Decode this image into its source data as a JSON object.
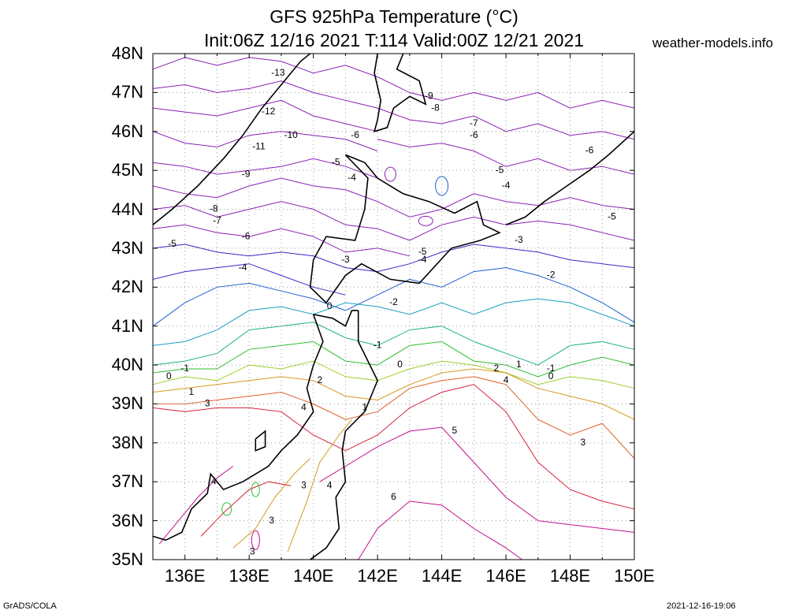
{
  "title": {
    "line1": "GFS 925hPa Temperature (°C)",
    "line2": "Init:06Z 12/16 2021 T:114 Valid:00Z 12/21 2021"
  },
  "source_site": "weather-models.info",
  "footer": {
    "left": "GrADS/COLA",
    "right": "2021-12-16-19:06"
  },
  "axes": {
    "lat_labels": [
      "48N",
      "47N",
      "46N",
      "45N",
      "44N",
      "43N",
      "42N",
      "41N",
      "40N",
      "39N",
      "38N",
      "37N",
      "36N",
      "35N"
    ],
    "lon_labels": [
      "136E",
      "138E",
      "140E",
      "142E",
      "144E",
      "146E",
      "148E",
      "150E"
    ],
    "lat_range": [
      35,
      48
    ],
    "lon_range": [
      135,
      150
    ],
    "grid": "dotted"
  },
  "contour_labels": [
    {
      "text": "-13",
      "lon": 138.9,
      "lat": 47.5
    },
    {
      "text": "-12",
      "lon": 138.6,
      "lat": 46.5
    },
    {
      "text": "-11",
      "lon": 138.3,
      "lat": 45.6
    },
    {
      "text": "-10",
      "lon": 139.3,
      "lat": 45.9
    },
    {
      "text": "-9",
      "lon": 137.9,
      "lat": 44.9
    },
    {
      "text": "-8",
      "lon": 136.9,
      "lat": 44.0
    },
    {
      "text": "-7",
      "lon": 137.0,
      "lat": 43.7
    },
    {
      "text": "-6",
      "lon": 137.9,
      "lat": 43.3
    },
    {
      "text": "-5",
      "lon": 135.6,
      "lat": 43.1
    },
    {
      "text": "-4",
      "lon": 137.8,
      "lat": 42.5
    },
    {
      "text": "-3",
      "lon": 141.0,
      "lat": 42.7
    },
    {
      "text": "-2",
      "lon": 142.5,
      "lat": 41.6
    },
    {
      "text": "-2",
      "lon": 147.4,
      "lat": 42.3
    },
    {
      "text": "-1",
      "lon": 136.0,
      "lat": 39.9
    },
    {
      "text": "-1",
      "lon": 142.0,
      "lat": 40.5
    },
    {
      "text": "-1",
      "lon": 147.4,
      "lat": 39.9
    },
    {
      "text": "0",
      "lon": 135.5,
      "lat": 39.7
    },
    {
      "text": "0",
      "lon": 140.5,
      "lat": 41.5
    },
    {
      "text": "0",
      "lon": 142.7,
      "lat": 40.0
    },
    {
      "text": "0",
      "lon": 147.4,
      "lat": 39.7
    },
    {
      "text": "1",
      "lon": 136.2,
      "lat": 39.3
    },
    {
      "text": "1",
      "lon": 141.6,
      "lat": 38.9
    },
    {
      "text": "1",
      "lon": 146.4,
      "lat": 40.0
    },
    {
      "text": "2",
      "lon": 140.2,
      "lat": 39.6
    },
    {
      "text": "2",
      "lon": 145.7,
      "lat": 39.9
    },
    {
      "text": "3",
      "lon": 136.7,
      "lat": 39.0
    },
    {
      "text": "3",
      "lon": 138.7,
      "lat": 36.0
    },
    {
      "text": "3",
      "lon": 138.1,
      "lat": 35.2
    },
    {
      "text": "3",
      "lon": 139.7,
      "lat": 36.9
    },
    {
      "text": "3",
      "lon": 148.4,
      "lat": 38.0
    },
    {
      "text": "4",
      "lon": 139.7,
      "lat": 38.9
    },
    {
      "text": "4",
      "lon": 140.5,
      "lat": 36.9
    },
    {
      "text": "4",
      "lon": 136.9,
      "lat": 37.0
    },
    {
      "text": "4",
      "lon": 146.0,
      "lat": 39.6
    },
    {
      "text": "5",
      "lon": 144.4,
      "lat": 38.3
    },
    {
      "text": "6",
      "lon": 142.5,
      "lat": 36.6
    },
    {
      "text": "-4",
      "lon": 141.2,
      "lat": 44.8
    },
    {
      "text": "-4",
      "lon": 143.4,
      "lat": 42.7
    },
    {
      "text": "-5",
      "lon": 140.7,
      "lat": 45.2
    },
    {
      "text": "-5",
      "lon": 143.4,
      "lat": 42.9
    },
    {
      "text": "-5",
      "lon": 145.8,
      "lat": 45.0
    },
    {
      "text": "-5",
      "lon": 149.3,
      "lat": 43.8
    },
    {
      "text": "-4",
      "lon": 146.0,
      "lat": 44.6
    },
    {
      "text": "-3",
      "lon": 146.4,
      "lat": 43.2
    },
    {
      "text": "-6",
      "lon": 141.3,
      "lat": 45.9
    },
    {
      "text": "-6",
      "lon": 145.0,
      "lat": 45.9
    },
    {
      "text": "-6",
      "lon": 148.6,
      "lat": 45.5
    },
    {
      "text": "-7",
      "lon": 145.0,
      "lat": 46.2
    },
    {
      "text": "-8",
      "lon": 143.8,
      "lat": 46.6
    },
    {
      "text": "-9",
      "lon": 143.6,
      "lat": 46.9
    }
  ],
  "colors": {
    "frame": "#000000",
    "coast": "#000000",
    "grid": "#9a9a9a",
    "cold_deep": "#8c1fb4",
    "cold": "#4a1fc8",
    "cool": "#1f5fcf",
    "cyan": "#1a9fc0",
    "teal": "#1fb08a",
    "green": "#2fbf2f",
    "lime": "#9fd02a",
    "orange": "#d69a1f",
    "orange_red": "#e0602a",
    "red": "#d8203a",
    "magenta": "#c0108a"
  }
}
